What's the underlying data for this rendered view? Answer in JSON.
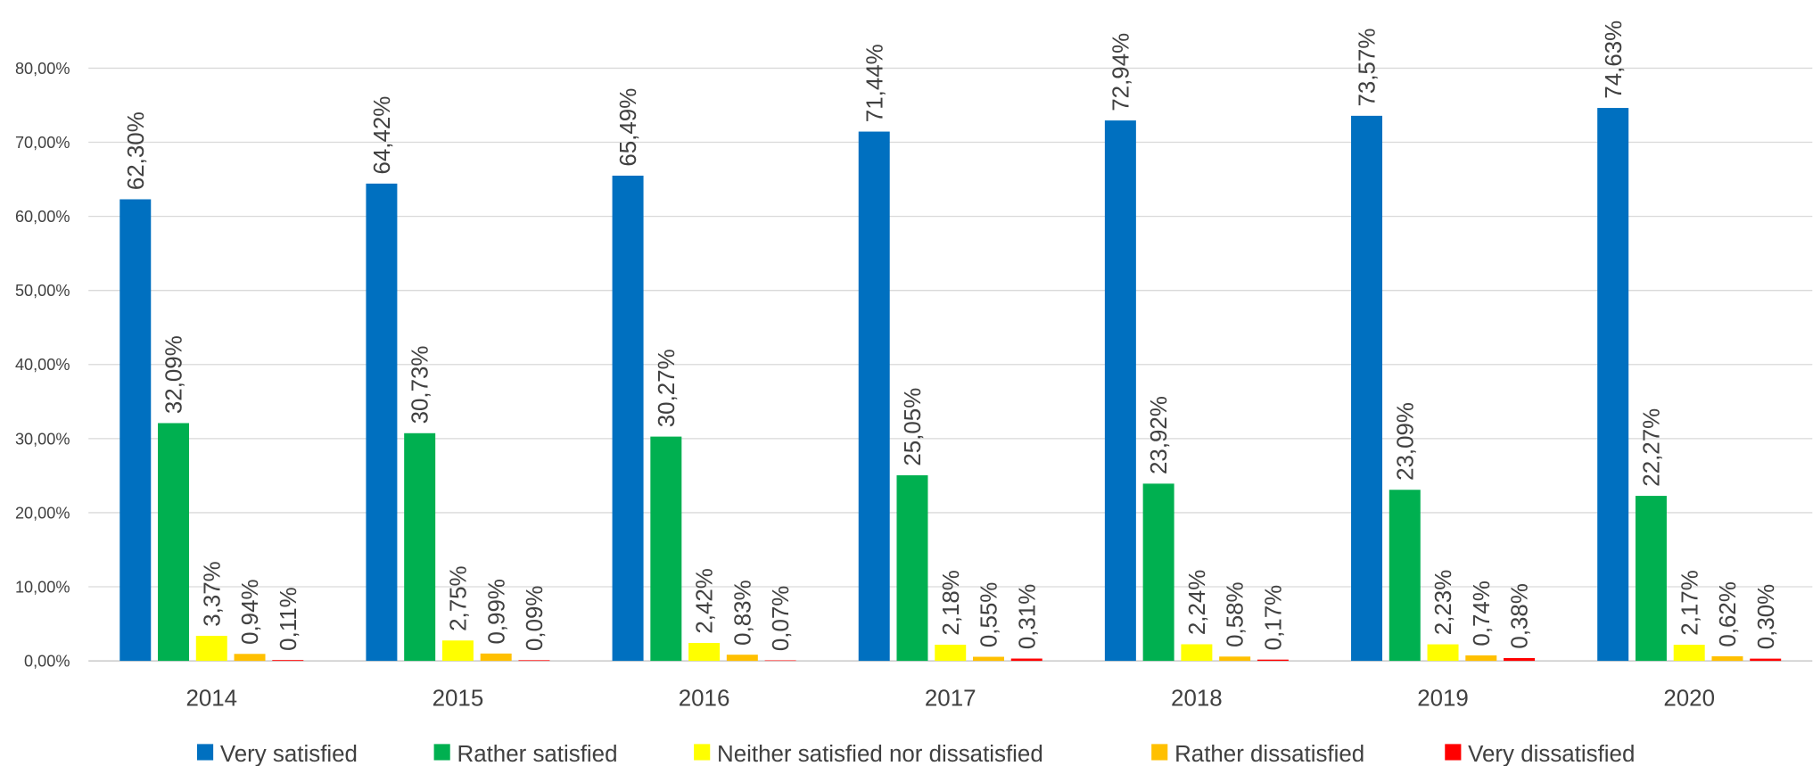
{
  "chart_data": {
    "type": "bar",
    "categories": [
      "2014",
      "2015",
      "2016",
      "2017",
      "2018",
      "2019",
      "2020"
    ],
    "series": [
      {
        "name": "Very satisfied",
        "color": "#0070c0",
        "values": [
          62.3,
          64.42,
          65.49,
          71.44,
          72.94,
          73.57,
          74.63
        ],
        "value_labels": [
          "62,30%",
          "64,42%",
          "65,49%",
          "71,44%",
          "72,94%",
          "73,57%",
          "74,63%"
        ]
      },
      {
        "name": "Rather satisfied",
        "color": "#00b050",
        "values": [
          32.09,
          30.73,
          30.27,
          25.05,
          23.92,
          23.09,
          22.27
        ],
        "value_labels": [
          "32,09%",
          "30,73%",
          "30,27%",
          "25,05%",
          "23,92%",
          "23,09%",
          "22,27%"
        ]
      },
      {
        "name": "Neither satisfied nor dissatisfied",
        "color": "#ffff00",
        "values": [
          3.37,
          2.75,
          2.42,
          2.18,
          2.24,
          2.23,
          2.17
        ],
        "value_labels": [
          "3,37%",
          "2,75%",
          "2,42%",
          "2,18%",
          "2,24%",
          "2,23%",
          "2,17%"
        ]
      },
      {
        "name": "Rather dissatisfied",
        "color": "#ffc000",
        "values": [
          0.94,
          0.99,
          0.83,
          0.55,
          0.58,
          0.74,
          0.62
        ],
        "value_labels": [
          "0,94%",
          "0,99%",
          "0,83%",
          "0,55%",
          "0,58%",
          "0,74%",
          "0,62%"
        ]
      },
      {
        "name": "Very dissatisfied",
        "color": "#ff0000",
        "values": [
          0.11,
          0.09,
          0.07,
          0.31,
          0.17,
          0.38,
          0.3
        ],
        "value_labels": [
          "0,11%",
          "0,09%",
          "0,07%",
          "0,31%",
          "0,17%",
          "0,38%",
          "0,30%"
        ]
      }
    ],
    "ylim": [
      0,
      80
    ],
    "yticks": [
      {
        "value": 0,
        "label": "0,00%"
      },
      {
        "value": 10,
        "label": "10,00%"
      },
      {
        "value": 20,
        "label": "20,00%"
      },
      {
        "value": 30,
        "label": "30,00%"
      },
      {
        "value": 40,
        "label": "40,00%"
      },
      {
        "value": 50,
        "label": "50,00%"
      },
      {
        "value": 60,
        "label": "60,00%"
      },
      {
        "value": 70,
        "label": "70,00%"
      },
      {
        "value": 80,
        "label": "80,00%"
      }
    ],
    "grid": true,
    "legend": "bottom"
  }
}
